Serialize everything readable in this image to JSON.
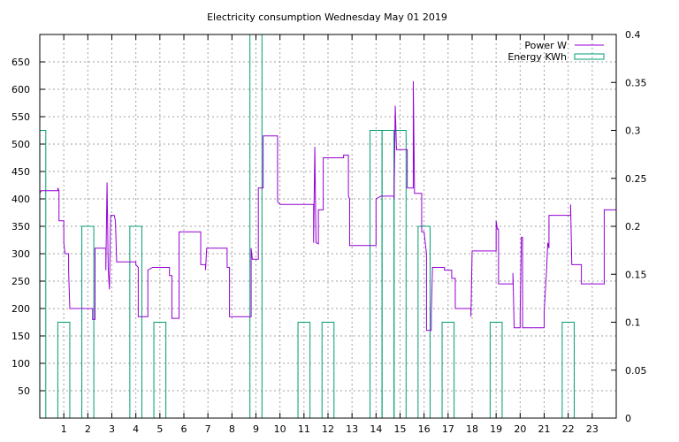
{
  "chart_data": {
    "type": "line",
    "title": "Electricity consumption Wednesday May 01 2019",
    "grid": true,
    "legend_position": "top-right",
    "x": {
      "range": [
        0,
        24
      ],
      "ticks": [
        1,
        2,
        3,
        4,
        5,
        6,
        7,
        8,
        9,
        10,
        11,
        12,
        13,
        14,
        15,
        16,
        17,
        18,
        19,
        20,
        21,
        22,
        23
      ]
    },
    "y_left": {
      "range": [
        0,
        700
      ],
      "ticks": [
        50,
        100,
        150,
        200,
        250,
        300,
        350,
        400,
        450,
        500,
        550,
        600,
        650
      ]
    },
    "y_right": {
      "range": [
        0,
        0.4
      ],
      "ticks": [
        "0",
        "0.05",
        "0.1",
        "0.15",
        "0.2",
        "0.25",
        "0.3",
        "0.35",
        "0.4"
      ]
    },
    "series": [
      {
        "name": "Power W",
        "color": "#9400d3",
        "axis": "left",
        "points": [
          [
            0,
            410
          ],
          [
            0.05,
            415
          ],
          [
            0.75,
            415
          ],
          [
            0.75,
            420
          ],
          [
            0.8,
            415
          ],
          [
            0.8,
            360
          ],
          [
            1.0,
            360
          ],
          [
            1.0,
            320
          ],
          [
            1.05,
            300
          ],
          [
            1.2,
            300
          ],
          [
            1.2,
            270
          ],
          [
            1.25,
            200
          ],
          [
            2.2,
            200
          ],
          [
            2.2,
            180
          ],
          [
            2.3,
            180
          ],
          [
            2.3,
            310
          ],
          [
            2.75,
            310
          ],
          [
            2.75,
            270
          ],
          [
            2.8,
            430
          ],
          [
            2.85,
            270
          ],
          [
            2.9,
            235
          ],
          [
            2.95,
            370
          ],
          [
            3.1,
            370
          ],
          [
            3.15,
            360
          ],
          [
            3.2,
            285
          ],
          [
            4.0,
            285
          ],
          [
            4.0,
            280
          ],
          [
            4.1,
            275
          ],
          [
            4.1,
            185
          ],
          [
            4.5,
            185
          ],
          [
            4.5,
            270
          ],
          [
            4.7,
            275
          ],
          [
            5.4,
            275
          ],
          [
            5.4,
            260
          ],
          [
            5.5,
            260
          ],
          [
            5.5,
            182
          ],
          [
            5.8,
            182
          ],
          [
            5.8,
            340
          ],
          [
            6.7,
            340
          ],
          [
            6.7,
            280
          ],
          [
            6.9,
            280
          ],
          [
            6.9,
            270
          ],
          [
            6.95,
            310
          ],
          [
            7.8,
            310
          ],
          [
            7.8,
            275
          ],
          [
            7.9,
            275
          ],
          [
            7.9,
            185
          ],
          [
            8.8,
            185
          ],
          [
            8.8,
            310
          ],
          [
            8.85,
            290
          ],
          [
            9.1,
            290
          ],
          [
            9.1,
            420
          ],
          [
            9.3,
            420
          ],
          [
            9.3,
            515
          ],
          [
            9.9,
            515
          ],
          [
            9.9,
            395
          ],
          [
            10.0,
            390
          ],
          [
            11.4,
            390
          ],
          [
            11.4,
            320
          ],
          [
            11.45,
            495
          ],
          [
            11.5,
            320
          ],
          [
            11.6,
            318
          ],
          [
            11.6,
            380
          ],
          [
            11.8,
            380
          ],
          [
            11.8,
            475
          ],
          [
            12.65,
            475
          ],
          [
            12.65,
            480
          ],
          [
            12.85,
            480
          ],
          [
            12.85,
            405
          ],
          [
            12.9,
            400
          ],
          [
            12.9,
            315
          ],
          [
            14.0,
            315
          ],
          [
            14.0,
            400
          ],
          [
            14.2,
            405
          ],
          [
            14.75,
            405
          ],
          [
            14.75,
            400
          ],
          [
            14.8,
            570
          ],
          [
            14.85,
            490
          ],
          [
            15.3,
            490
          ],
          [
            15.3,
            420
          ],
          [
            15.55,
            420
          ],
          [
            15.55,
            615
          ],
          [
            15.6,
            420
          ],
          [
            15.6,
            410
          ],
          [
            15.9,
            410
          ],
          [
            15.9,
            340
          ],
          [
            16.0,
            340
          ],
          [
            16.1,
            300
          ],
          [
            16.1,
            160
          ],
          [
            16.3,
            160
          ],
          [
            16.3,
            190
          ],
          [
            16.35,
            275
          ],
          [
            16.85,
            275
          ],
          [
            16.85,
            270
          ],
          [
            17.15,
            270
          ],
          [
            17.15,
            255
          ],
          [
            17.3,
            255
          ],
          [
            17.3,
            200
          ],
          [
            17.95,
            200
          ],
          [
            17.95,
            185
          ],
          [
            18.0,
            305
          ],
          [
            19.0,
            305
          ],
          [
            19.0,
            360
          ],
          [
            19.05,
            345
          ],
          [
            19.1,
            345
          ],
          [
            19.1,
            245
          ],
          [
            19.7,
            245
          ],
          [
            19.7,
            265
          ],
          [
            19.75,
            165
          ],
          [
            20.0,
            165
          ],
          [
            20.0,
            190
          ],
          [
            20.05,
            330
          ],
          [
            20.1,
            330
          ],
          [
            20.1,
            165
          ],
          [
            21.0,
            165
          ],
          [
            21.0,
            195
          ],
          [
            21.1,
            270
          ],
          [
            21.15,
            320
          ],
          [
            21.2,
            310
          ],
          [
            21.2,
            370
          ],
          [
            22.1,
            370
          ],
          [
            22.1,
            390
          ],
          [
            22.15,
            280
          ],
          [
            22.55,
            280
          ],
          [
            22.55,
            245
          ],
          [
            23.5,
            245
          ],
          [
            23.5,
            380
          ],
          [
            24,
            380
          ]
        ]
      },
      {
        "name": "Energy KWh",
        "color": "#009e73",
        "axis": "right",
        "type": "bar",
        "bars": [
          {
            "x": 0,
            "w": 0.25,
            "value": 0.3
          },
          {
            "x": 0.75,
            "w": 0.5,
            "value": 0.1
          },
          {
            "x": 1.75,
            "w": 0.5,
            "value": 0.2
          },
          {
            "x": 3.75,
            "w": 0.5,
            "value": 0.2
          },
          {
            "x": 4.75,
            "w": 0.5,
            "value": 0.1
          },
          {
            "x": 8.75,
            "w": 0.5,
            "value": 0.4
          },
          {
            "x": 10.75,
            "w": 0.5,
            "value": 0.1
          },
          {
            "x": 11.75,
            "w": 0.5,
            "value": 0.1
          },
          {
            "x": 13.75,
            "w": 0.5,
            "value": 0.3
          },
          {
            "x": 14.25,
            "w": 0.5,
            "value": 0.3
          },
          {
            "x": 14.75,
            "w": 0.5,
            "value": 0.3
          },
          {
            "x": 15.75,
            "w": 0.5,
            "value": 0.2
          },
          {
            "x": 16.75,
            "w": 0.5,
            "value": 0.1
          },
          {
            "x": 18.75,
            "w": 0.5,
            "value": 0.1
          },
          {
            "x": 21.75,
            "w": 0.5,
            "value": 0.1
          }
        ]
      }
    ]
  }
}
